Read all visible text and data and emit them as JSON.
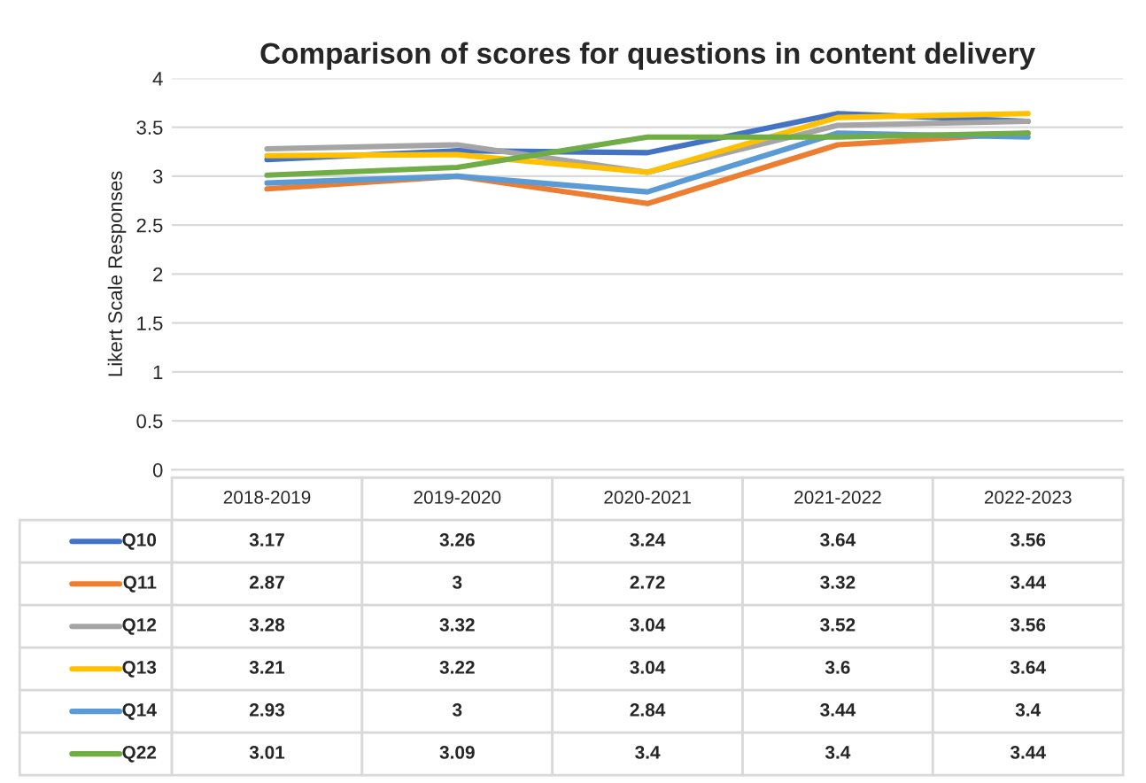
{
  "chart_data": {
    "type": "line",
    "title": "Comparison of scores for questions in content delivery",
    "ylabel": "Likert Scale Responses",
    "categories": [
      "2018-2019",
      "2019-2020",
      "2020-2021",
      "2021-2022",
      "2022-2023"
    ],
    "series": [
      {
        "name": "Q10",
        "color": "#4472c4",
        "values": [
          3.17,
          3.26,
          3.24,
          3.64,
          3.56
        ]
      },
      {
        "name": "Q11",
        "color": "#ed7d31",
        "values": [
          2.87,
          3,
          2.72,
          3.32,
          3.44
        ]
      },
      {
        "name": "Q12",
        "color": "#a5a5a5",
        "values": [
          3.28,
          3.32,
          3.04,
          3.52,
          3.56
        ]
      },
      {
        "name": "Q13",
        "color": "#ffc000",
        "values": [
          3.21,
          3.22,
          3.04,
          3.6,
          3.64
        ]
      },
      {
        "name": "Q14",
        "color": "#5b9bd5",
        "values": [
          2.93,
          3,
          2.84,
          3.44,
          3.4
        ]
      },
      {
        "name": "Q22",
        "color": "#70ad47",
        "values": [
          3.01,
          3.09,
          3.4,
          3.4,
          3.44
        ]
      }
    ],
    "ylim": [
      0,
      4
    ],
    "yticks": [
      0,
      0.5,
      1,
      1.5,
      2,
      2.5,
      3,
      3.5,
      4
    ],
    "grid": "y",
    "tick_labels": "y",
    "data_labels": true,
    "legend": "bottom",
    "marker": "none",
    "line_style": "solid"
  }
}
